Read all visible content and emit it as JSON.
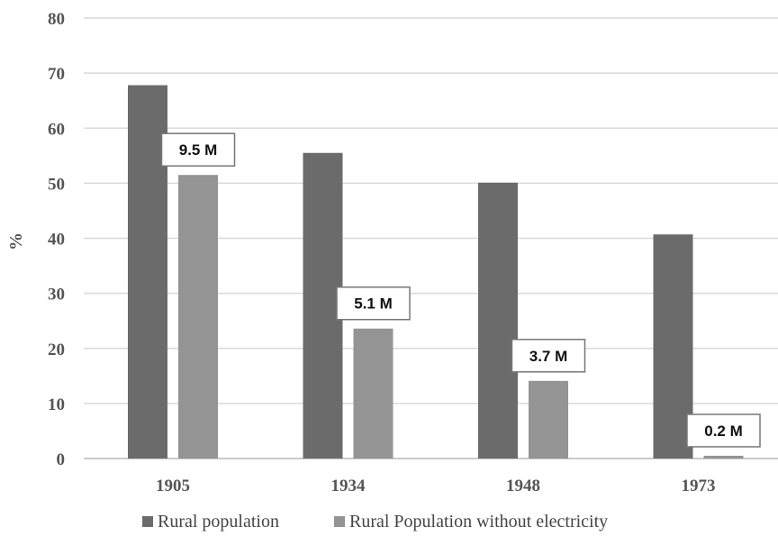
{
  "chart_data": {
    "type": "bar",
    "title": "",
    "xlabel": "",
    "ylabel": "%",
    "ylim": [
      0,
      80
    ],
    "yticks": [
      0,
      10,
      20,
      30,
      40,
      50,
      60,
      70,
      80
    ],
    "grid": true,
    "legend_position": "bottom",
    "categories": [
      "1905",
      "1934",
      "1948",
      "1973"
    ],
    "series": [
      {
        "name": "Rural population",
        "color": "#6b6b6b",
        "values": [
          67.8,
          55.5,
          50.1,
          40.7
        ]
      },
      {
        "name": "Rural Population without electricity",
        "color": "#949494",
        "values": [
          51.5,
          23.6,
          14.1,
          0.5
        ]
      }
    ],
    "annotations": [
      "9.5 M",
      "5.1 M",
      "3.7 M",
      "0.2 M"
    ]
  }
}
